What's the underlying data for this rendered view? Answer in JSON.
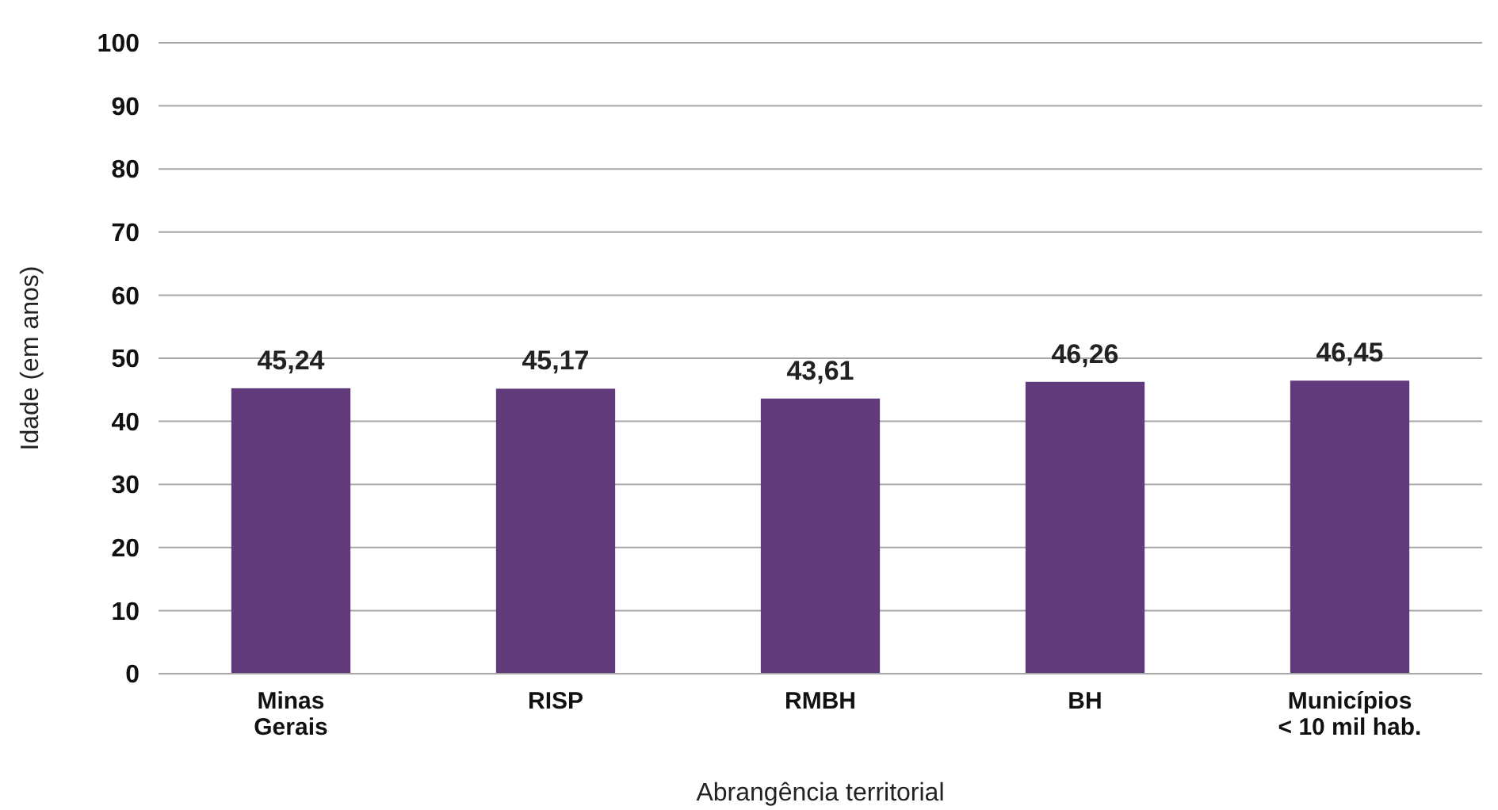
{
  "chart_data": {
    "type": "bar",
    "xlabel": "Abrangência territorial",
    "ylabel": "Idade (em anos)",
    "categories": [
      "Minas\nGerais",
      "RISP",
      "RMBH",
      "BH",
      "Municípios\n< 10 mil hab."
    ],
    "values": [
      45.24,
      45.17,
      43.61,
      46.26,
      46.45
    ],
    "value_labels": [
      "45,24",
      "45,17",
      "43,61",
      "46,26",
      "46,45"
    ],
    "color": "#603a7a",
    "ylim": [
      0,
      100
    ],
    "yticks": [
      0,
      10,
      20,
      30,
      40,
      50,
      60,
      70,
      80,
      90,
      100
    ],
    "grid": "y"
  }
}
